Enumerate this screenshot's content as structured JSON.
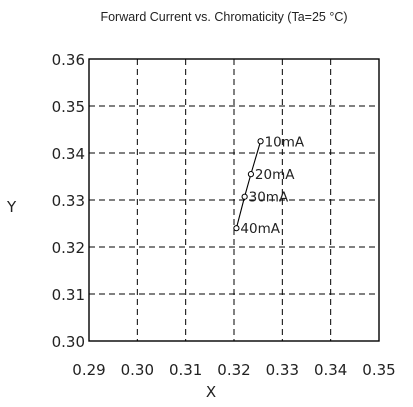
{
  "chart_data": {
    "type": "line",
    "title": "Forward Current vs. Chromaticity (Ta=25 °C)",
    "xlabel": "X",
    "ylabel": "Y",
    "xlim": [
      0.29,
      0.35
    ],
    "ylim": [
      0.3,
      0.36
    ],
    "x_ticks": [
      "0.29",
      "0.30",
      "0.31",
      "0.32",
      "0.33",
      "0.34",
      "0.35"
    ],
    "y_ticks": [
      "0.30",
      "0.31",
      "0.32",
      "0.33",
      "0.34",
      "0.35",
      "0.36"
    ],
    "grid": true,
    "series": [
      {
        "points": [
          {
            "x": 0.3255,
            "y": 0.3425,
            "label": "10mA"
          },
          {
            "x": 0.3235,
            "y": 0.3355,
            "label": "20mA"
          },
          {
            "x": 0.3222,
            "y": 0.3307,
            "label": "30mA"
          },
          {
            "x": 0.3205,
            "y": 0.324,
            "label": "40mA"
          }
        ]
      }
    ]
  }
}
